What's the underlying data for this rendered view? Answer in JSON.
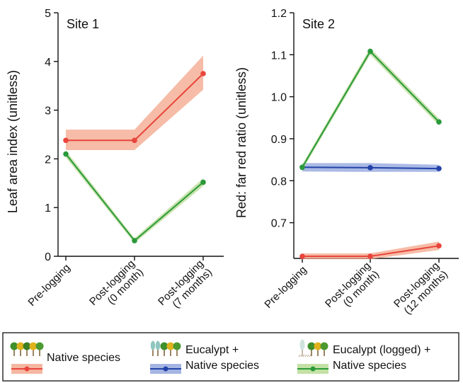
{
  "chart_data": [
    {
      "type": "line",
      "title": "Site 1",
      "ylabel": "Leaf area index (unitless)",
      "xlabel": "",
      "categories": [
        "Pre-logging",
        "Post-logging\n(0 month)",
        "Post-logging\n(7 months)"
      ],
      "ylim": [
        0,
        5
      ],
      "yticks": [
        0,
        1,
        2,
        3,
        4,
        5
      ],
      "grid": false,
      "series": [
        {
          "name": "Native species",
          "color": "#e8453c",
          "band_color": "#f3a58a",
          "values": [
            2.38,
            2.38,
            3.75
          ],
          "lower": [
            2.18,
            2.18,
            3.42
          ],
          "upper": [
            2.6,
            2.6,
            4.12
          ]
        },
        {
          "name": "Eucalypt (logged) + Native species",
          "color": "#2a9a3a",
          "band_color": "#b5d98f",
          "values": [
            2.1,
            0.32,
            1.52
          ],
          "lower": [
            2.03,
            0.27,
            1.44
          ],
          "upper": [
            2.17,
            0.37,
            1.6
          ]
        }
      ]
    },
    {
      "type": "line",
      "title": "Site 2",
      "ylabel": "Red: far red ratio (unitless)",
      "xlabel": "",
      "categories": [
        "Pre-logging",
        "Post-logging\n(0 month)",
        "Post-logging\n(12 months)"
      ],
      "ylim": [
        0.615,
        1.2
      ],
      "yticks": [
        0.7,
        0.8,
        0.9,
        1.0,
        1.1,
        1.2
      ],
      "ytick_labels": [
        "0.7",
        "0.8",
        "0.9",
        "1.0",
        "1.1",
        "1.2"
      ],
      "grid": false,
      "series": [
        {
          "name": "Native species",
          "color": "#e8453c",
          "band_color": "#f3a58a",
          "values": [
            0.62,
            0.62,
            0.645
          ],
          "lower": [
            0.613,
            0.613,
            0.635
          ],
          "upper": [
            0.627,
            0.627,
            0.655
          ]
        },
        {
          "name": "Eucalypt + Native species",
          "color": "#2343a8",
          "band_color": "#8fa3dc",
          "values": [
            0.832,
            0.831,
            0.829
          ],
          "lower": [
            0.822,
            0.821,
            0.821
          ],
          "upper": [
            0.842,
            0.842,
            0.838
          ]
        },
        {
          "name": "Eucalypt (logged) + Native species",
          "color": "#2a9a3a",
          "band_color": "#b5d98f",
          "values": [
            0.832,
            1.108,
            0.94
          ],
          "lower": [
            0.825,
            1.1,
            0.932
          ],
          "upper": [
            0.839,
            1.116,
            0.948
          ]
        }
      ]
    }
  ],
  "legend": {
    "position": "bottom",
    "items": [
      {
        "label_lines": [
          "Native species"
        ],
        "color": "#e8453c",
        "band_color": "#f3a58a",
        "icon": "native-trees-icon"
      },
      {
        "label_lines": [
          "Eucalypt +",
          "Native species"
        ],
        "color": "#2343a8",
        "band_color": "#8fa3dc",
        "icon": "eucalypt-native-trees-icon"
      },
      {
        "label_lines": [
          "Eucalypt (logged) +",
          "Native species"
        ],
        "color": "#2a9a3a",
        "band_color": "#b5d98f",
        "icon": "logged-eucalypt-trees-icon"
      }
    ]
  }
}
